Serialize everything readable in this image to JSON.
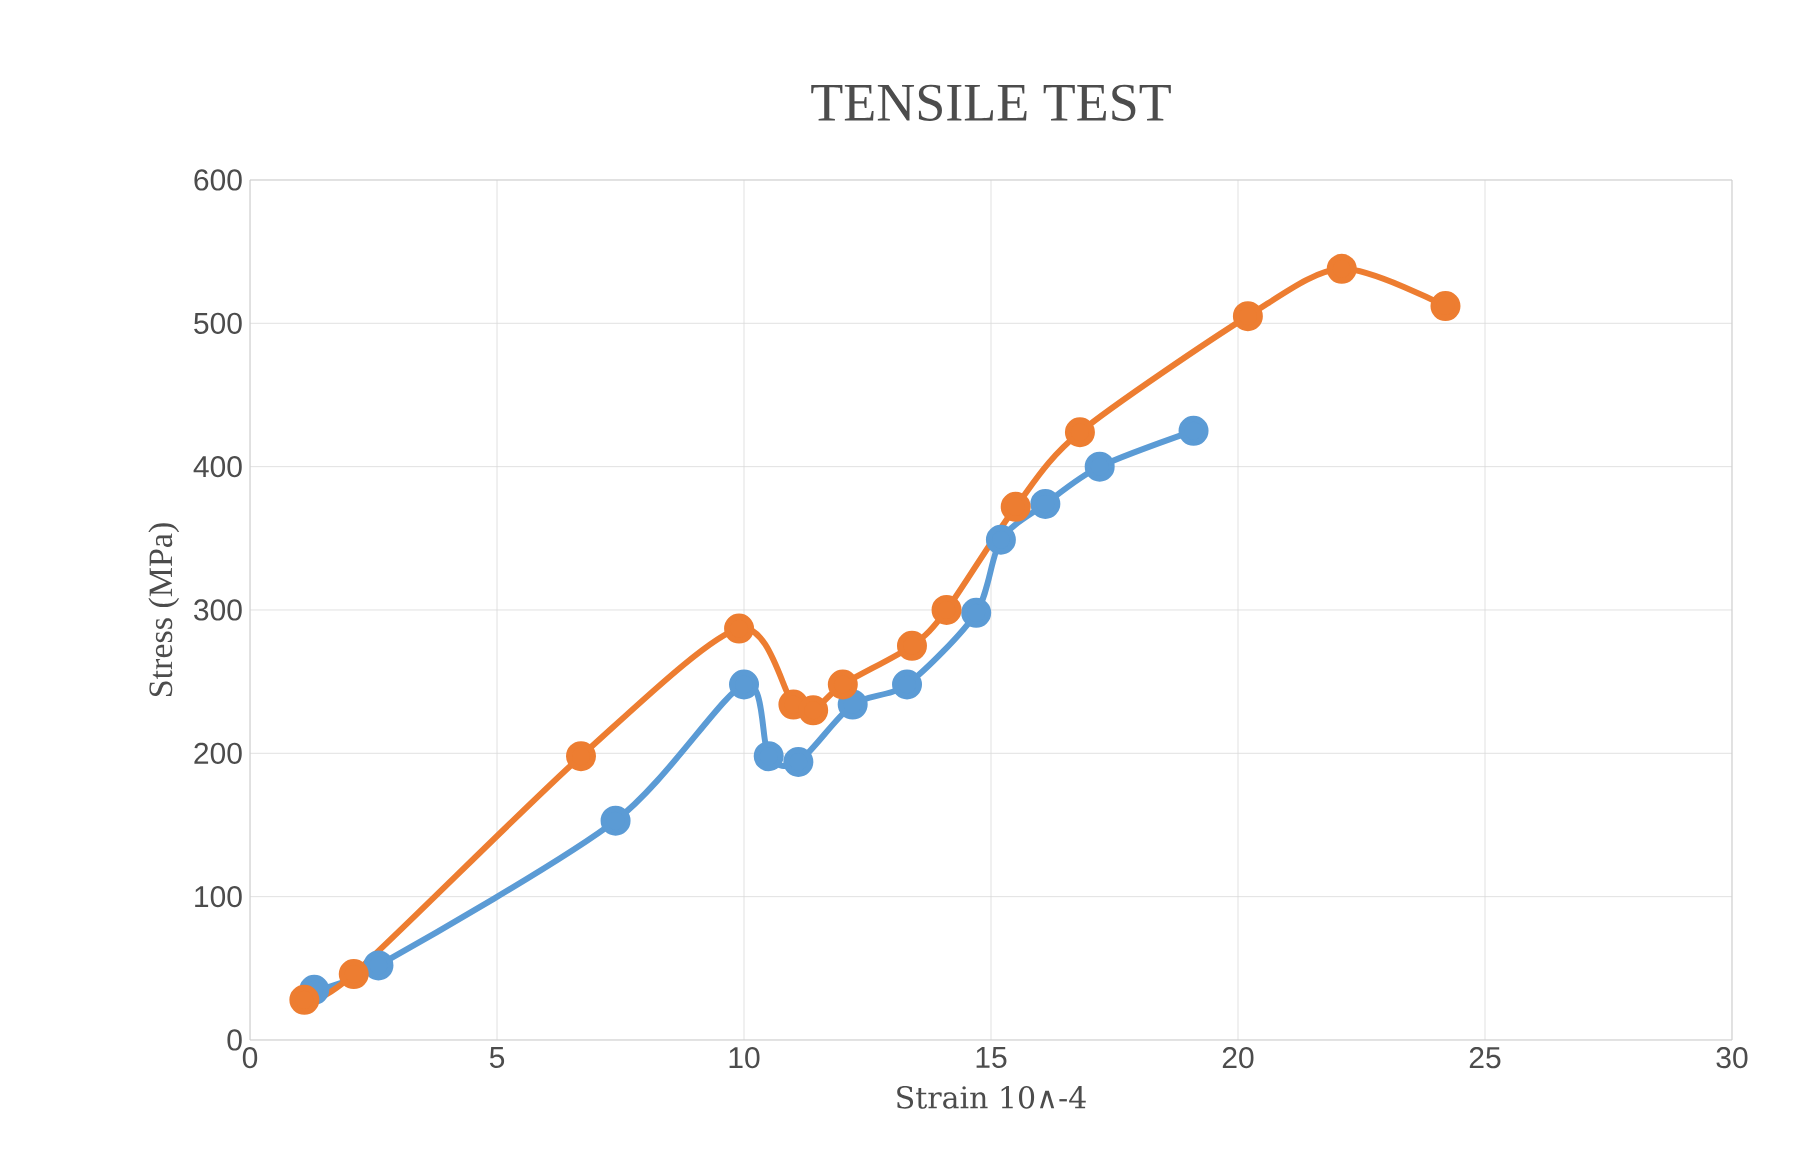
{
  "chart_data": {
    "type": "line",
    "title": "TENSILE TEST",
    "xlabel": "Strain 10∧-4",
    "ylabel": "Stress (MPa)",
    "series": [
      {
        "color": "#5b9bd5",
        "x": [
          1.3,
          2.6,
          7.4,
          10.0,
          10.5,
          11.1,
          12.2,
          13.3,
          14.7,
          15.2,
          16.1,
          17.2,
          19.1
        ],
        "values": [
          35,
          52,
          153,
          248,
          198,
          194,
          234,
          248,
          298,
          349,
          374,
          400,
          425
        ]
      },
      {
        "color": "#ed7d31",
        "x": [
          1.1,
          2.1,
          6.7,
          9.9,
          11.0,
          11.4,
          12.0,
          13.4,
          14.1,
          15.5,
          16.8,
          20.2,
          22.1,
          24.2
        ],
        "values": [
          28,
          46,
          198,
          287,
          234,
          230,
          248,
          275,
          300,
          372,
          424,
          505,
          538,
          512
        ]
      }
    ],
    "xlim": [
      0,
      30
    ],
    "xticks": [
      0,
      5,
      10,
      15,
      20,
      25,
      30
    ],
    "ylim": [
      0,
      600
    ],
    "yticks": [
      0,
      100,
      200,
      300,
      400,
      500,
      600
    ],
    "grid": true,
    "marker": "circle",
    "line_style": "solid"
  }
}
